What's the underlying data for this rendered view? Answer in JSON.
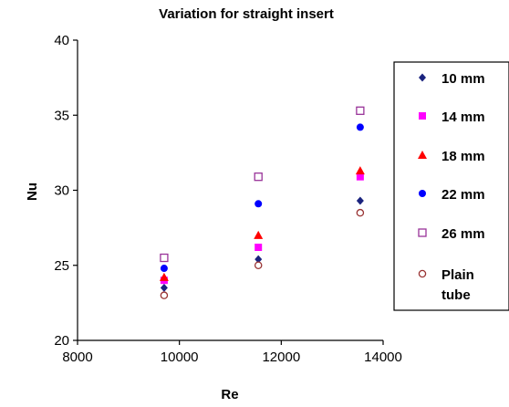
{
  "chart_data": {
    "type": "scatter",
    "title": "Variation for straight insert",
    "xlabel": "Re",
    "ylabel": "Nu",
    "xlim": [
      8000,
      14000
    ],
    "ylim": [
      20,
      40
    ],
    "xticks": [
      "8000",
      "10000",
      "12000",
      "14000"
    ],
    "yticks": [
      "20",
      "25",
      "30",
      "35",
      "40"
    ],
    "grid": false,
    "legend_position": "right",
    "x": [
      9700,
      11550,
      13550
    ],
    "series": [
      {
        "name": "10 mm",
        "marker": "diamond",
        "color": "#1a237e",
        "values": [
          23.5,
          25.4,
          29.3
        ]
      },
      {
        "name": "14 mm",
        "marker": "square",
        "color": "#ff00ff",
        "values": [
          24.0,
          26.2,
          30.9
        ]
      },
      {
        "name": "18 mm",
        "marker": "triangle",
        "color": "#ff0000",
        "values": [
          24.2,
          27.0,
          31.3
        ]
      },
      {
        "name": "22 mm",
        "marker": "circle",
        "color": "#0000ff",
        "values": [
          24.8,
          29.1,
          34.2
        ]
      },
      {
        "name": "26 mm",
        "marker": "square-open",
        "color": "#993399",
        "values": [
          25.5,
          30.9,
          35.3
        ]
      },
      {
        "name": "Plain tube",
        "marker": "circle-open",
        "color": "#993333",
        "values": [
          23.0,
          25.0,
          28.5
        ]
      }
    ]
  }
}
